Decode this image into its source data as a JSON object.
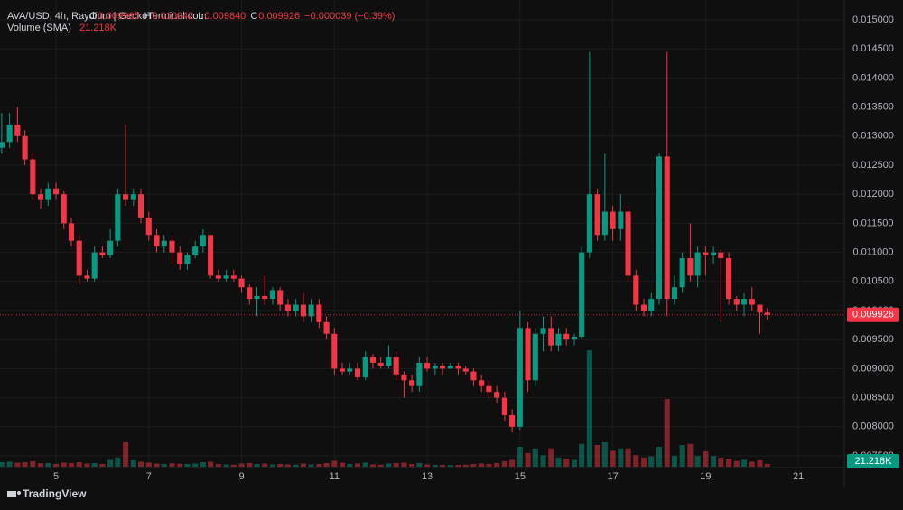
{
  "chart_data": {
    "type": "candlestick",
    "header": {
      "title": "AVA/USD, 4h, Raydium | GeckoTerminal.com",
      "values": [
        {
          "key": "O",
          "value": 0.009965,
          "label": "0.009965"
        },
        {
          "key": "H",
          "value": 0.010042,
          "label": "0.010042"
        },
        {
          "key": "L",
          "value": 0.00984,
          "label": "0.009840"
        },
        {
          "key": "C",
          "value": 0.009926,
          "label": "0.009926"
        }
      ],
      "change": {
        "value": -3.9e-05,
        "label": "−0.000039 (−0.39%)"
      },
      "volume_sma": {
        "name": "Volume (SMA)",
        "value": 21218,
        "label": "21.218K"
      }
    },
    "footer": "TradingView",
    "up_color": "#089981",
    "down_color": "#f23645",
    "grid": true,
    "xlim": [
      3.793,
      21.99
    ],
    "xticks": [
      5,
      7,
      9,
      11,
      13,
      15,
      17,
      19,
      21
    ],
    "ylim": [
      0.007158,
      0.015342
    ],
    "yticks": [
      {
        "value": 0.0075,
        "label": "0.007500"
      },
      {
        "value": 0.008,
        "label": "0.008000"
      },
      {
        "value": 0.0085,
        "label": "0.008500"
      },
      {
        "value": 0.009,
        "label": "0.009000"
      },
      {
        "value": 0.0095,
        "label": "0.009500"
      },
      {
        "value": 0.01,
        "label": "0.010000"
      },
      {
        "value": 0.0105,
        "label": "0.010500"
      },
      {
        "value": 0.011,
        "label": "0.011000"
      },
      {
        "value": 0.0115,
        "label": "0.011500"
      },
      {
        "value": 0.012,
        "label": "0.012000"
      },
      {
        "value": 0.0125,
        "label": "0.012500"
      },
      {
        "value": 0.013,
        "label": "0.013000"
      },
      {
        "value": 0.0135,
        "label": "0.013500"
      },
      {
        "value": 0.014,
        "label": "0.014000"
      },
      {
        "value": 0.0145,
        "label": "0.014500"
      },
      {
        "value": 0.015,
        "label": "0.015000"
      }
    ],
    "volume_ylim": [
      0,
      700000
    ],
    "x": [
      3.83,
      4,
      4.17,
      4.33,
      4.5,
      4.67,
      4.83,
      5,
      5.17,
      5.33,
      5.5,
      5.67,
      5.83,
      6,
      6.17,
      6.33,
      6.5,
      6.67,
      6.83,
      7,
      7.17,
      7.33,
      7.5,
      7.67,
      7.83,
      8,
      8.17,
      8.33,
      8.5,
      8.67,
      8.83,
      9,
      9.17,
      9.33,
      9.5,
      9.67,
      9.83,
      10,
      10.17,
      10.33,
      10.5,
      10.67,
      10.83,
      11,
      11.17,
      11.33,
      11.5,
      11.67,
      11.83,
      12,
      12.17,
      12.33,
      12.5,
      12.67,
      12.83,
      13,
      13.17,
      13.33,
      13.5,
      13.67,
      13.83,
      14,
      14.17,
      14.33,
      14.5,
      14.67,
      14.83,
      15,
      15.17,
      15.33,
      15.5,
      15.67,
      15.83,
      16,
      16.17,
      16.33,
      16.5,
      16.67,
      16.83,
      17,
      17.17,
      17.33,
      17.5,
      17.67,
      17.83,
      18,
      18.17,
      18.33,
      18.5,
      18.67,
      18.83,
      19,
      19.17,
      19.33,
      19.5,
      19.67,
      19.83,
      20,
      20.17,
      20.33
    ],
    "open": [
      0.0128,
      0.0129,
      0.0132,
      0.013,
      0.0126,
      0.012,
      0.0119,
      0.0121,
      0.012,
      0.0115,
      0.0112,
      0.0106,
      0.01055,
      0.011,
      0.01095,
      0.0112,
      0.012,
      0.0119,
      0.012,
      0.0116,
      0.0113,
      0.0111,
      0.0112,
      0.011,
      0.0108,
      0.01095,
      0.0111,
      0.0113,
      0.0106,
      0.01055,
      0.0106,
      0.01055,
      0.0104,
      0.0102,
      0.01025,
      0.0102,
      0.01035,
      0.0101,
      0.01,
      0.0101,
      0.0099,
      0.0101,
      0.0098,
      0.0096,
      0.009,
      0.00895,
      0.009,
      0.00885,
      0.0092,
      0.0091,
      0.00905,
      0.0092,
      0.0089,
      0.0088,
      0.0087,
      0.0091,
      0.009,
      0.00905,
      0.009,
      0.00905,
      0.009,
      0.00895,
      0.0088,
      0.0087,
      0.0086,
      0.0085,
      0.0082,
      0.008,
      0.0097,
      0.0088,
      0.0096,
      0.0097,
      0.0094,
      0.0096,
      0.0095,
      0.00955,
      0.011,
      0.012,
      0.0113,
      0.0117,
      0.0114,
      0.0117,
      0.0106,
      0.0101,
      0.01,
      0.0102,
      0.01265,
      0.0102,
      0.0104,
      0.0109,
      0.0106,
      0.011,
      0.01095,
      0.011,
      0.0109,
      0.0102,
      0.0101,
      0.0102,
      0.0101,
      0.009965
    ],
    "high": [
      0.0134,
      0.0134,
      0.0135,
      0.0131,
      0.0127,
      0.0121,
      0.0122,
      0.0122,
      0.01205,
      0.0116,
      0.0113,
      0.0107,
      0.0111,
      0.0111,
      0.0114,
      0.0121,
      0.0132,
      0.0121,
      0.0121,
      0.0117,
      0.0114,
      0.0113,
      0.0113,
      0.0111,
      0.011,
      0.0112,
      0.0114,
      0.0113,
      0.0107,
      0.0107,
      0.0107,
      0.0106,
      0.01045,
      0.0104,
      0.0106,
      0.0104,
      0.0104,
      0.0102,
      0.0102,
      0.0103,
      0.0102,
      0.0102,
      0.0099,
      0.0097,
      0.0091,
      0.0091,
      0.0091,
      0.0093,
      0.00925,
      0.0092,
      0.0094,
      0.0093,
      0.00895,
      0.0089,
      0.0092,
      0.0092,
      0.0091,
      0.0091,
      0.0091,
      0.0091,
      0.00905,
      0.009,
      0.0089,
      0.0088,
      0.0087,
      0.0086,
      0.0083,
      0.01,
      0.0098,
      0.0097,
      0.0099,
      0.0099,
      0.0097,
      0.0097,
      0.0096,
      0.0111,
      0.01445,
      0.0121,
      0.0127,
      0.0118,
      0.012,
      0.0118,
      0.0107,
      0.0102,
      0.0103,
      0.0127,
      0.01445,
      0.0106,
      0.011,
      0.0115,
      0.0111,
      0.0111,
      0.0111,
      0.01105,
      0.011,
      0.01025,
      0.0103,
      0.0104,
      0.0101,
      0.010042
    ],
    "low": [
      0.0127,
      0.0128,
      0.0129,
      0.0125,
      0.0119,
      0.01175,
      0.0118,
      0.0119,
      0.0114,
      0.0111,
      0.01045,
      0.0105,
      0.0105,
      0.0109,
      0.0109,
      0.0111,
      0.0118,
      0.0118,
      0.0115,
      0.0112,
      0.011,
      0.011,
      0.0108,
      0.0107,
      0.0107,
      0.0109,
      0.011,
      0.01055,
      0.0105,
      0.0105,
      0.0105,
      0.0103,
      0.0101,
      0.0099,
      0.0101,
      0.0101,
      0.01,
      0.0099,
      0.0099,
      0.0098,
      0.0098,
      0.0097,
      0.0095,
      0.0089,
      0.0089,
      0.0089,
      0.0088,
      0.0088,
      0.009,
      0.009,
      0.009,
      0.0088,
      0.0085,
      0.0086,
      0.0086,
      0.00895,
      0.0089,
      0.0089,
      0.009,
      0.0089,
      0.0089,
      0.0087,
      0.0086,
      0.0085,
      0.0084,
      0.0081,
      0.0079,
      0.00795,
      0.0086,
      0.0087,
      0.0093,
      0.0093,
      0.0093,
      0.0094,
      0.0094,
      0.0095,
      0.0109,
      0.0112,
      0.0112,
      0.0112,
      0.0112,
      0.0105,
      0.01,
      0.0099,
      0.0099,
      0.0101,
      0.0099,
      0.0101,
      0.0103,
      0.0105,
      0.0104,
      0.0106,
      0.0108,
      0.0098,
      0.0101,
      0.01,
      0.0099,
      0.01,
      0.0096,
      0.00984
    ],
    "close": [
      0.0129,
      0.0132,
      0.013,
      0.0126,
      0.012,
      0.0119,
      0.0121,
      0.012,
      0.0115,
      0.0112,
      0.0106,
      0.01055,
      0.011,
      0.01095,
      0.0112,
      0.012,
      0.0119,
      0.012,
      0.0116,
      0.0113,
      0.0111,
      0.0112,
      0.011,
      0.0108,
      0.01095,
      0.0111,
      0.0113,
      0.0106,
      0.01055,
      0.0106,
      0.01055,
      0.0104,
      0.0102,
      0.01025,
      0.0102,
      0.01035,
      0.0101,
      0.01,
      0.0101,
      0.0099,
      0.0101,
      0.0098,
      0.0096,
      0.009,
      0.00895,
      0.009,
      0.00885,
      0.0092,
      0.0091,
      0.00905,
      0.0092,
      0.0089,
      0.0088,
      0.0087,
      0.0091,
      0.009,
      0.00905,
      0.009,
      0.00905,
      0.009,
      0.00895,
      0.0088,
      0.0087,
      0.0086,
      0.0085,
      0.0082,
      0.008,
      0.0097,
      0.0088,
      0.0096,
      0.0097,
      0.0094,
      0.0096,
      0.0095,
      0.00955,
      0.011,
      0.012,
      0.0113,
      0.0117,
      0.0114,
      0.0117,
      0.0106,
      0.0101,
      0.01,
      0.0102,
      0.01265,
      0.0102,
      0.0104,
      0.0109,
      0.0106,
      0.011,
      0.01095,
      0.011,
      0.0109,
      0.0102,
      0.0101,
      0.0102,
      0.0101,
      0.009965,
      0.009926
    ],
    "volume": [
      20000,
      22000,
      18000,
      20000,
      24000,
      15000,
      16000,
      12000,
      18000,
      16000,
      20000,
      14000,
      16000,
      12000,
      30000,
      40000,
      107000,
      28000,
      22000,
      18000,
      14000,
      12000,
      15000,
      13000,
      12000,
      14000,
      20000,
      22000,
      12000,
      10000,
      9000,
      14000,
      16000,
      12000,
      14000,
      10000,
      12000,
      10000,
      9000,
      14000,
      10000,
      12000,
      16000,
      26000,
      18000,
      12000,
      14000,
      18000,
      10000,
      9000,
      14000,
      16000,
      18000,
      12000,
      16000,
      10000,
      8000,
      8000,
      7000,
      8000,
      9000,
      12000,
      14000,
      12000,
      16000,
      24000,
      30000,
      87000,
      60000,
      80000,
      50000,
      80000,
      40000,
      35000,
      30000,
      100000,
      510000,
      95000,
      107000,
      70000,
      80000,
      80000,
      50000,
      40000,
      45000,
      87000,
      297000,
      47000,
      95000,
      100000,
      47000,
      67000,
      47000,
      40000,
      35000,
      25000,
      30000,
      22000,
      28000,
      12000
    ]
  }
}
